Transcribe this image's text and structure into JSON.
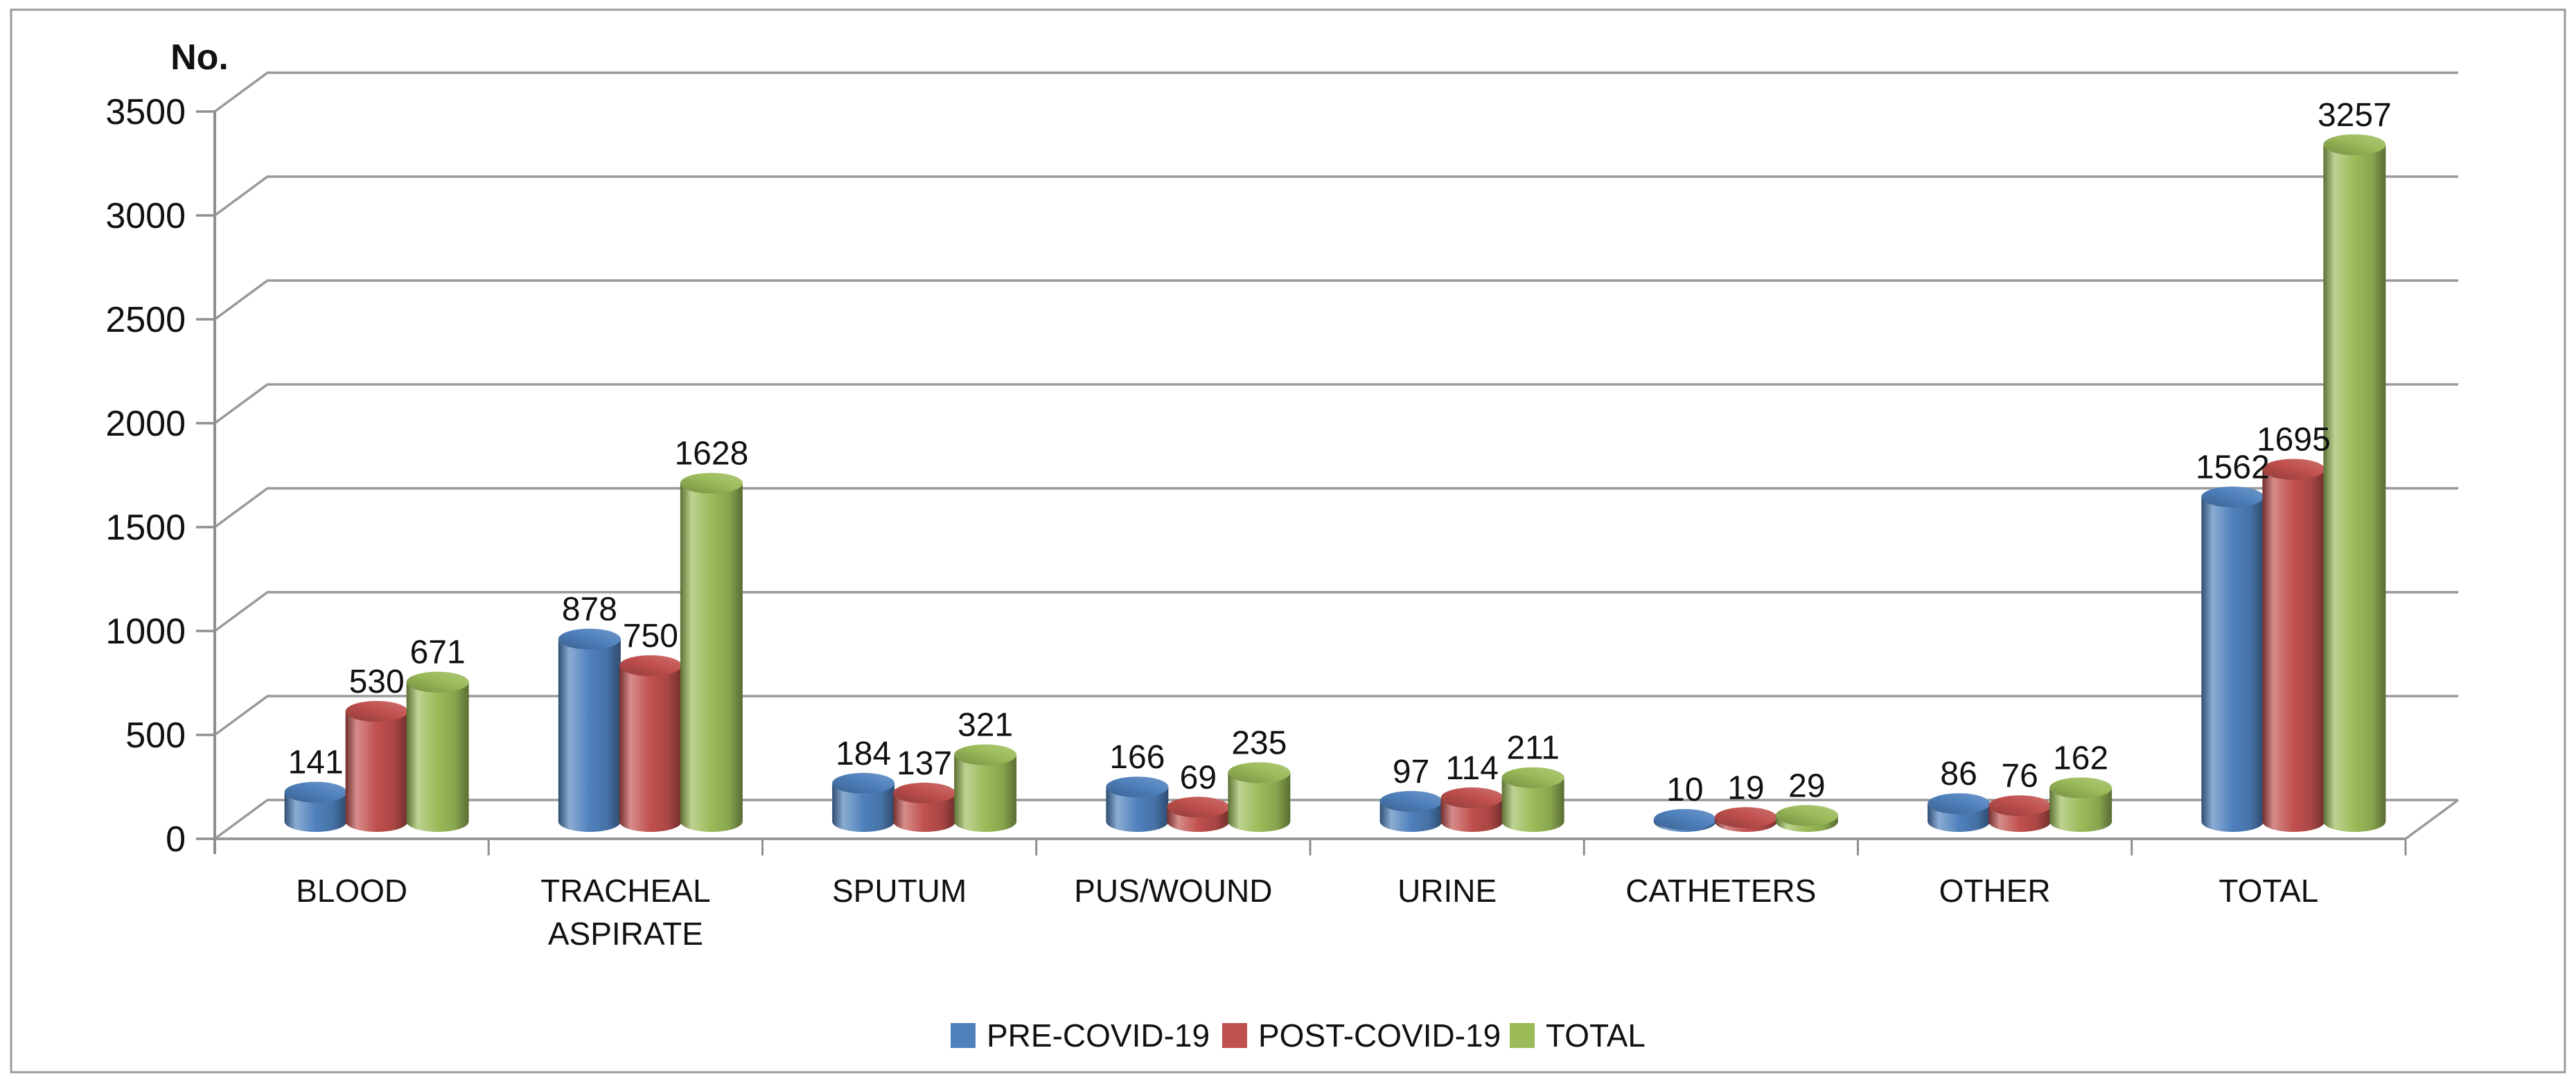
{
  "frame": {
    "border_color": "#9b9b9b",
    "background": "#ffffff"
  },
  "chart_data": {
    "type": "bar",
    "subtype": "3d-cylinder-clustered",
    "title": "",
    "axis_title": "No.",
    "xlabel": "",
    "ylabel": "No.",
    "categories": [
      "BLOOD",
      "TRACHEAL ASPIRATE",
      "SPUTUM",
      "PUS/WOUND",
      "URINE",
      "CATHETERS",
      "OTHER",
      "TOTAL"
    ],
    "series": [
      {
        "name": "PRE-COVID-19",
        "color": "#4F81BD",
        "values": [
          141,
          878,
          184,
          166,
          97,
          10,
          86,
          1562
        ]
      },
      {
        "name": "POST-COVID-19",
        "color": "#C0504D",
        "values": [
          530,
          750,
          137,
          69,
          114,
          19,
          76,
          1695
        ]
      },
      {
        "name": "TOTAL",
        "color": "#9BBB59",
        "values": [
          671,
          1628,
          321,
          235,
          211,
          29,
          162,
          3257
        ]
      }
    ],
    "y_axis": {
      "min": 0,
      "max": 3500,
      "step": 500
    },
    "ylim": [
      0,
      3500
    ],
    "grid": true,
    "data_labels": true,
    "legend_position": "bottom",
    "text_color": "#111111",
    "grid_color": "#999999",
    "axis_color": "#8f8f8f"
  }
}
